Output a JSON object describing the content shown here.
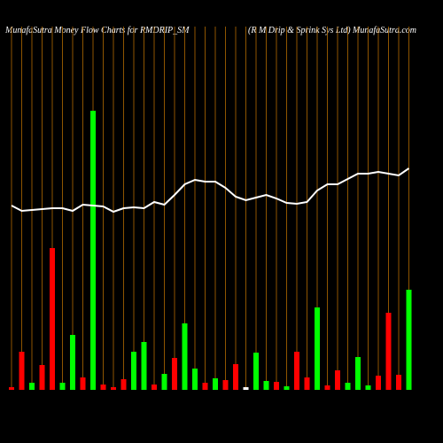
{
  "chart_data": {
    "type": "bar",
    "title": "MunafaSutra  Money Flow  Charts for RMDRIP_SM",
    "subtitle": "(R M Drip & Sprink Sys Ltd) MunafaSutra.com",
    "ylim": [
      0,
      410
    ],
    "grid_color": "#b36b00",
    "series": [
      {
        "type": "bar",
        "values": [
          3,
          43,
          8,
          28,
          160,
          8,
          62,
          14,
          315,
          6,
          3,
          12,
          43,
          54,
          6,
          18,
          36,
          75,
          24,
          8,
          13,
          11,
          29,
          3,
          42,
          10,
          9,
          4,
          43,
          14,
          93,
          5,
          22,
          8,
          37,
          5,
          16,
          87,
          17,
          113
        ],
        "colors": [
          "#ff0000",
          "#ff0000",
          "#00ff00",
          "#ff0000",
          "#ff0000",
          "#00ff00",
          "#00ff00",
          "#ff0000",
          "#00ff00",
          "#ff0000",
          "#ff0000",
          "#ff0000",
          "#00ff00",
          "#00ff00",
          "#ff0000",
          "#00ff00",
          "#ff0000",
          "#00ff00",
          "#00ff00",
          "#ff0000",
          "#00ff00",
          "#ff0000",
          "#ff0000",
          "#ffffff",
          "#00ff00",
          "#00ff00",
          "#ff0000",
          "#00ff00",
          "#ff0000",
          "#ff0000",
          "#00ff00",
          "#ff0000",
          "#ff0000",
          "#00ff00",
          "#00ff00",
          "#00ff00",
          "#ff0000",
          "#ff0000",
          "#ff0000",
          "#00ff00"
        ]
      },
      {
        "type": "line",
        "color": "#ffffff",
        "values": [
          208,
          202,
          203,
          204,
          205,
          205,
          202,
          209,
          208,
          207,
          201,
          205,
          206,
          205,
          212,
          209,
          220,
          232,
          237,
          235,
          235,
          228,
          218,
          214,
          217,
          220,
          216,
          211,
          210,
          212,
          225,
          232,
          232,
          238,
          244,
          244,
          246,
          244,
          242,
          250
        ]
      }
    ]
  }
}
